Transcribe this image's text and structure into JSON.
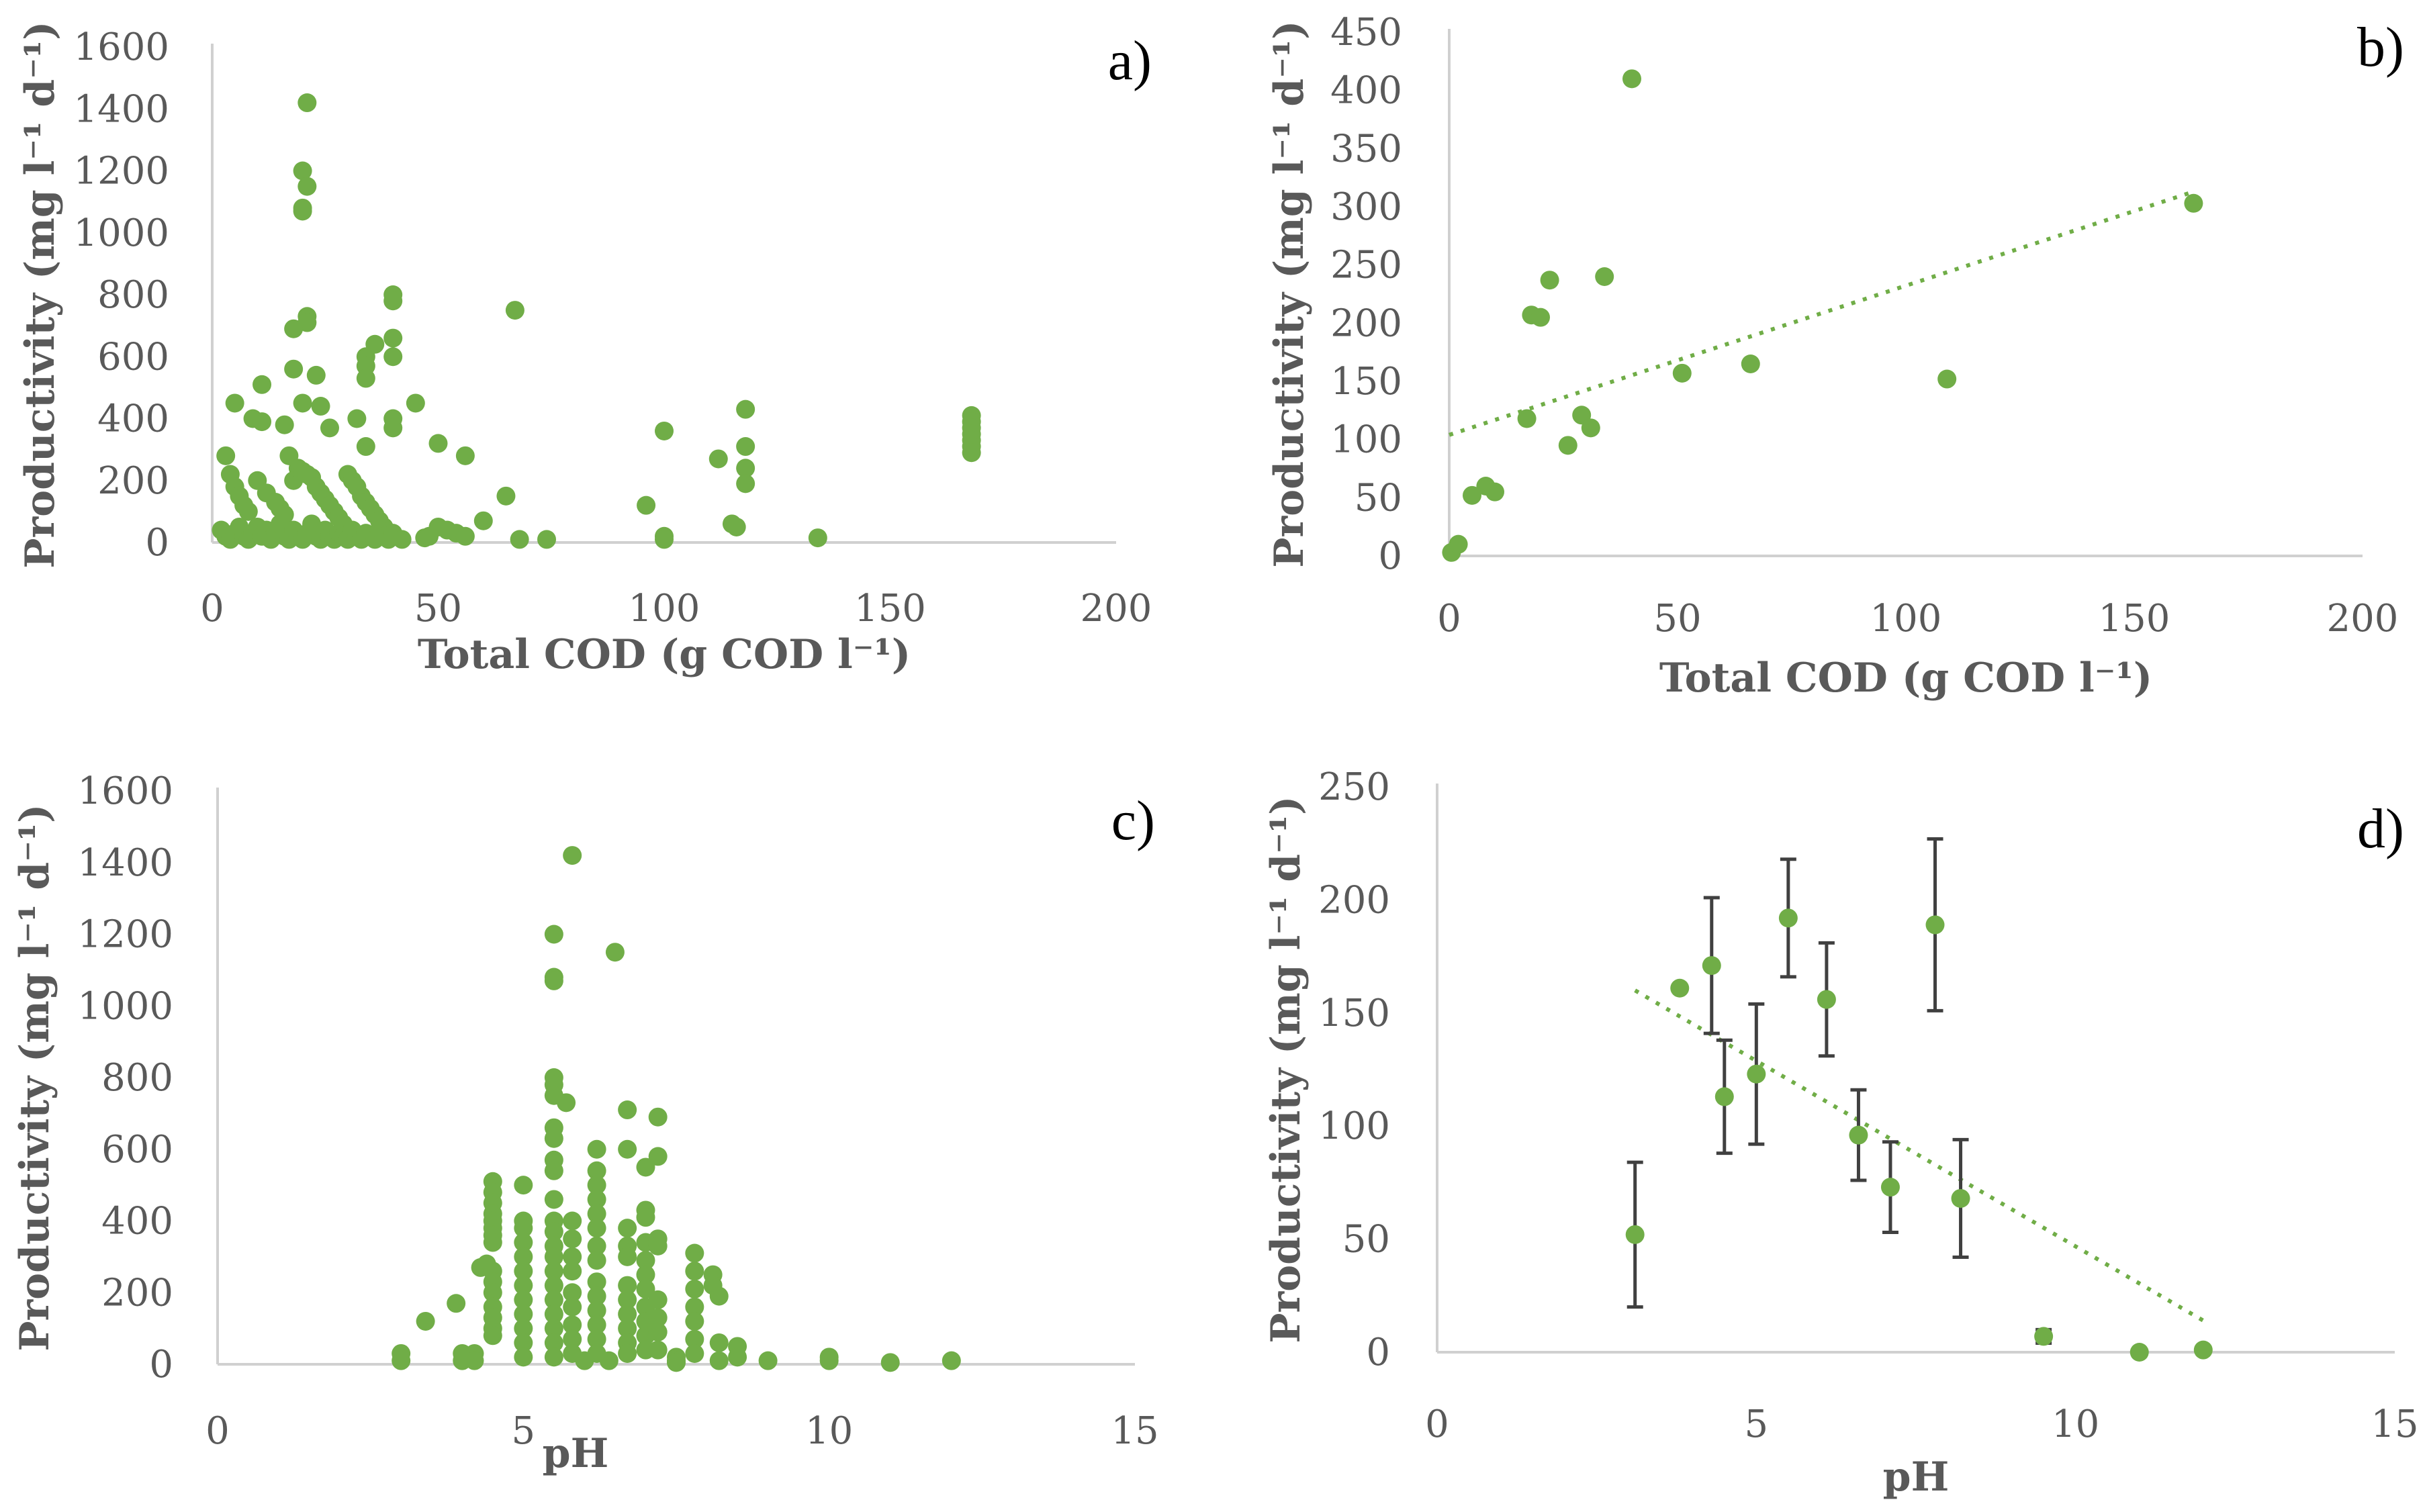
{
  "colors": {
    "marker": "#70ad47",
    "axis": "#d0d0d0",
    "text": "#595959",
    "errorbar": "#404040"
  },
  "chart_data": [
    {
      "id": "a",
      "panel_label": "a)",
      "type": "scatter",
      "xlabel": "Total COD (g COD l⁻¹)",
      "ylabel": "Productivity (mg l⁻¹ d⁻¹)",
      "xlim": [
        0,
        200
      ],
      "ylim": [
        0,
        1600
      ],
      "xticks": [
        0,
        50,
        100,
        150,
        200
      ],
      "yticks": [
        0,
        200,
        400,
        600,
        800,
        1000,
        1200,
        1400,
        1600
      ],
      "xtick_labels": [
        "0",
        "50",
        "100",
        "150",
        "200"
      ],
      "ytick_labels": [
        "0",
        "200",
        "400",
        "600",
        "800",
        "1000",
        "1200",
        "1400",
        "1600"
      ],
      "points": [
        [
          21,
          1420
        ],
        [
          20,
          1200
        ],
        [
          21,
          1150
        ],
        [
          20,
          1080
        ],
        [
          20,
          1070
        ],
        [
          21,
          730
        ],
        [
          21,
          710
        ],
        [
          18,
          690
        ],
        [
          40,
          800
        ],
        [
          40,
          780
        ],
        [
          67,
          750
        ],
        [
          40,
          660
        ],
        [
          36,
          640
        ],
        [
          34,
          600
        ],
        [
          34,
          570
        ],
        [
          40,
          600
        ],
        [
          18,
          560
        ],
        [
          23,
          540
        ],
        [
          11,
          510
        ],
        [
          34,
          530
        ],
        [
          5,
          450
        ],
        [
          9,
          400
        ],
        [
          11,
          390
        ],
        [
          16,
          380
        ],
        [
          20,
          450
        ],
        [
          24,
          440
        ],
        [
          26,
          370
        ],
        [
          32,
          400
        ],
        [
          40,
          400
        ],
        [
          40,
          370
        ],
        [
          45,
          450
        ],
        [
          34,
          310
        ],
        [
          50,
          320
        ],
        [
          56,
          280
        ],
        [
          65,
          150
        ],
        [
          3,
          280
        ],
        [
          4,
          220
        ],
        [
          5,
          180
        ],
        [
          6,
          150
        ],
        [
          7,
          120
        ],
        [
          8,
          100
        ],
        [
          10,
          200
        ],
        [
          12,
          160
        ],
        [
          14,
          130
        ],
        [
          15,
          110
        ],
        [
          16,
          90
        ],
        [
          17,
          280
        ],
        [
          18,
          200
        ],
        [
          19,
          240
        ],
        [
          20,
          230
        ],
        [
          21,
          220
        ],
        [
          22,
          210
        ],
        [
          23,
          180
        ],
        [
          24,
          160
        ],
        [
          25,
          140
        ],
        [
          26,
          120
        ],
        [
          27,
          100
        ],
        [
          28,
          80
        ],
        [
          29,
          60
        ],
        [
          30,
          220
        ],
        [
          31,
          200
        ],
        [
          32,
          180
        ],
        [
          33,
          150
        ],
        [
          34,
          130
        ],
        [
          35,
          110
        ],
        [
          36,
          90
        ],
        [
          37,
          70
        ],
        [
          38,
          50
        ],
        [
          2,
          40
        ],
        [
          3,
          20
        ],
        [
          4,
          10
        ],
        [
          5,
          30
        ],
        [
          6,
          50
        ],
        [
          7,
          20
        ],
        [
          8,
          10
        ],
        [
          9,
          30
        ],
        [
          10,
          50
        ],
        [
          11,
          20
        ],
        [
          12,
          40
        ],
        [
          13,
          10
        ],
        [
          14,
          30
        ],
        [
          15,
          60
        ],
        [
          16,
          20
        ],
        [
          17,
          10
        ],
        [
          18,
          40
        ],
        [
          19,
          20
        ],
        [
          20,
          10
        ],
        [
          21,
          30
        ],
        [
          22,
          60
        ],
        [
          23,
          20
        ],
        [
          24,
          10
        ],
        [
          25,
          40
        ],
        [
          26,
          20
        ],
        [
          27,
          10
        ],
        [
          28,
          30
        ],
        [
          29,
          20
        ],
        [
          30,
          10
        ],
        [
          31,
          40
        ],
        [
          32,
          20
        ],
        [
          33,
          10
        ],
        [
          34,
          30
        ],
        [
          35,
          20
        ],
        [
          36,
          10
        ],
        [
          37,
          40
        ],
        [
          38,
          20
        ],
        [
          39,
          10
        ],
        [
          40,
          30
        ],
        [
          42,
          10
        ],
        [
          47,
          15
        ],
        [
          48,
          20
        ],
        [
          50,
          50
        ],
        [
          52,
          40
        ],
        [
          54,
          30
        ],
        [
          56,
          20
        ],
        [
          60,
          70
        ],
        [
          68,
          10
        ],
        [
          74,
          10
        ],
        [
          96,
          120
        ],
        [
          100,
          360
        ],
        [
          100,
          20
        ],
        [
          100,
          10
        ],
        [
          112,
          270
        ],
        [
          115,
          60
        ],
        [
          116,
          50
        ],
        [
          118,
          430
        ],
        [
          118,
          310
        ],
        [
          118,
          240
        ],
        [
          118,
          190
        ],
        [
          134,
          15
        ],
        [
          168,
          410
        ],
        [
          168,
          390
        ],
        [
          168,
          370
        ],
        [
          168,
          350
        ],
        [
          168,
          330
        ],
        [
          168,
          310
        ],
        [
          168,
          290
        ]
      ]
    },
    {
      "id": "b",
      "panel_label": "b)",
      "type": "scatter",
      "xlabel": "Total COD (g COD l⁻¹)",
      "ylabel": "Productivity (mg l⁻¹ d⁻¹)",
      "xlim": [
        0,
        200
      ],
      "ylim": [
        0,
        450
      ],
      "xticks": [
        0,
        50,
        100,
        150,
        200
      ],
      "yticks": [
        0,
        50,
        100,
        150,
        200,
        250,
        300,
        350,
        400,
        450
      ],
      "xtick_labels": [
        "0",
        "50",
        "100",
        "150",
        "200"
      ],
      "ytick_labels": [
        "0",
        "50",
        "100",
        "150",
        "200",
        "250",
        "300",
        "350",
        "400",
        "450"
      ],
      "points": [
        [
          0.5,
          3
        ],
        [
          2,
          10
        ],
        [
          5,
          52
        ],
        [
          8,
          60
        ],
        [
          10,
          55
        ],
        [
          17,
          118
        ],
        [
          18,
          207
        ],
        [
          20,
          205
        ],
        [
          22,
          237
        ],
        [
          26,
          95
        ],
        [
          29,
          121
        ],
        [
          31,
          110
        ],
        [
          34,
          240
        ],
        [
          40,
          410
        ],
        [
          51,
          157
        ],
        [
          66,
          165
        ],
        [
          109,
          152
        ],
        [
          163,
          303
        ]
      ],
      "trendline": [
        [
          0,
          104
        ],
        [
          163,
          313
        ]
      ]
    },
    {
      "id": "c",
      "panel_label": "c)",
      "type": "scatter",
      "xlabel": "pH",
      "ylabel": "Productivity (mg l⁻¹ d⁻¹)",
      "xlim": [
        0,
        15
      ],
      "ylim": [
        0,
        1600
      ],
      "xticks": [
        0,
        5,
        10,
        15
      ],
      "yticks": [
        0,
        200,
        400,
        600,
        800,
        1000,
        1200,
        1400,
        1600
      ],
      "xtick_labels": [
        "0",
        "5",
        "10",
        "15"
      ],
      "ytick_labels": [
        "0",
        "200",
        "400",
        "600",
        "800",
        "1000",
        "1200",
        "1400",
        "1600"
      ],
      "points": [
        [
          5.8,
          1420
        ],
        [
          5.5,
          1200
        ],
        [
          6.5,
          1150
        ],
        [
          5.5,
          1080
        ],
        [
          5.5,
          1070
        ],
        [
          5.5,
          800
        ],
        [
          5.5,
          780
        ],
        [
          5.5,
          750
        ],
        [
          5.5,
          660
        ],
        [
          5.5,
          630
        ],
        [
          5.7,
          730
        ],
        [
          6.7,
          710
        ],
        [
          7.2,
          690
        ],
        [
          7.2,
          580
        ],
        [
          7.0,
          550
        ],
        [
          6.2,
          600
        ],
        [
          6.7,
          600
        ],
        [
          6.2,
          540
        ],
        [
          6.2,
          500
        ],
        [
          5.0,
          500
        ],
        [
          4.5,
          510
        ],
        [
          4.5,
          480
        ],
        [
          4.5,
          450
        ],
        [
          4.5,
          420
        ],
        [
          4.5,
          400
        ],
        [
          4.5,
          380
        ],
        [
          4.5,
          360
        ],
        [
          4.5,
          340
        ],
        [
          4.4,
          280
        ],
        [
          4.3,
          270
        ],
        [
          4.5,
          260
        ],
        [
          4.5,
          230
        ],
        [
          4.5,
          200
        ],
        [
          4.5,
          160
        ],
        [
          4.5,
          130
        ],
        [
          4.5,
          100
        ],
        [
          4.5,
          80
        ],
        [
          5.0,
          400
        ],
        [
          5.0,
          380
        ],
        [
          5.0,
          340
        ],
        [
          5.0,
          300
        ],
        [
          5.0,
          260
        ],
        [
          5.0,
          220
        ],
        [
          5.0,
          180
        ],
        [
          5.0,
          140
        ],
        [
          5.0,
          100
        ],
        [
          5.0,
          60
        ],
        [
          5.0,
          20
        ],
        [
          5.5,
          570
        ],
        [
          5.5,
          540
        ],
        [
          5.5,
          460
        ],
        [
          5.5,
          400
        ],
        [
          5.5,
          370
        ],
        [
          5.5,
          330
        ],
        [
          5.5,
          300
        ],
        [
          5.5,
          260
        ],
        [
          5.5,
          220
        ],
        [
          5.5,
          180
        ],
        [
          5.5,
          140
        ],
        [
          5.5,
          100
        ],
        [
          5.5,
          60
        ],
        [
          5.5,
          20
        ],
        [
          5.8,
          400
        ],
        [
          5.8,
          350
        ],
        [
          5.8,
          300
        ],
        [
          5.8,
          260
        ],
        [
          5.8,
          200
        ],
        [
          5.8,
          160
        ],
        [
          5.8,
          110
        ],
        [
          5.8,
          70
        ],
        [
          5.8,
          30
        ],
        [
          6.2,
          460
        ],
        [
          6.2,
          420
        ],
        [
          6.2,
          380
        ],
        [
          6.2,
          330
        ],
        [
          6.2,
          290
        ],
        [
          6.2,
          230
        ],
        [
          6.2,
          190
        ],
        [
          6.2,
          150
        ],
        [
          6.2,
          110
        ],
        [
          6.2,
          70
        ],
        [
          6.2,
          30
        ],
        [
          6.7,
          380
        ],
        [
          6.7,
          330
        ],
        [
          6.7,
          300
        ],
        [
          6.7,
          220
        ],
        [
          6.7,
          180
        ],
        [
          6.7,
          140
        ],
        [
          6.7,
          100
        ],
        [
          6.7,
          60
        ],
        [
          6.7,
          30
        ],
        [
          7.0,
          430
        ],
        [
          7.0,
          410
        ],
        [
          7.0,
          340
        ],
        [
          7.0,
          290
        ],
        [
          7.0,
          250
        ],
        [
          7.0,
          210
        ],
        [
          7.0,
          160
        ],
        [
          7.0,
          120
        ],
        [
          7.0,
          80
        ],
        [
          7.0,
          40
        ],
        [
          7.2,
          350
        ],
        [
          7.2,
          330
        ],
        [
          7.2,
          180
        ],
        [
          7.2,
          130
        ],
        [
          7.2,
          90
        ],
        [
          7.2,
          40
        ],
        [
          7.5,
          20
        ],
        [
          7.5,
          10
        ],
        [
          7.5,
          5
        ],
        [
          7.8,
          310
        ],
        [
          7.8,
          260
        ],
        [
          7.8,
          210
        ],
        [
          7.8,
          160
        ],
        [
          7.8,
          120
        ],
        [
          7.8,
          70
        ],
        [
          7.8,
          30
        ],
        [
          8.1,
          250
        ],
        [
          8.1,
          220
        ],
        [
          8.2,
          190
        ],
        [
          8.2,
          60
        ],
        [
          8.2,
          10
        ],
        [
          3.0,
          30
        ],
        [
          3.0,
          10
        ],
        [
          3.4,
          120
        ],
        [
          3.9,
          170
        ],
        [
          4.0,
          30
        ],
        [
          4.0,
          10
        ],
        [
          4.2,
          30
        ],
        [
          4.2,
          10
        ],
        [
          6.0,
          10
        ],
        [
          6.4,
          10
        ],
        [
          8.5,
          50
        ],
        [
          8.5,
          20
        ],
        [
          9.0,
          10
        ],
        [
          10.0,
          20
        ],
        [
          10.0,
          10
        ],
        [
          11.0,
          5
        ],
        [
          12.0,
          10
        ]
      ]
    },
    {
      "id": "d",
      "panel_label": "d)",
      "type": "scatter",
      "xlabel": "pH",
      "ylabel": "Productivity (mg l⁻¹ d⁻¹)",
      "xlim": [
        0,
        15
      ],
      "ylim": [
        0,
        250
      ],
      "xticks": [
        0,
        5,
        10,
        15
      ],
      "yticks": [
        0,
        50,
        100,
        150,
        200,
        250
      ],
      "xtick_labels": [
        "0",
        "5",
        "10",
        "15"
      ],
      "ytick_labels": [
        "0",
        "50",
        "100",
        "150",
        "200",
        "250"
      ],
      "points": [
        [
          3.1,
          52
        ],
        [
          3.8,
          161
        ],
        [
          4.3,
          171
        ],
        [
          4.5,
          113
        ],
        [
          5.0,
          123
        ],
        [
          5.5,
          192
        ],
        [
          6.1,
          156
        ],
        [
          6.6,
          96
        ],
        [
          7.1,
          73
        ],
        [
          7.8,
          189
        ],
        [
          8.2,
          68
        ],
        [
          9.5,
          7
        ],
        [
          11.0,
          0
        ],
        [
          12.0,
          1
        ]
      ],
      "error": [
        32,
        0,
        30,
        25,
        31,
        26,
        25,
        20,
        20,
        38,
        26,
        3,
        0,
        0
      ],
      "trendline": [
        [
          3.1,
          160
        ],
        [
          12.0,
          14
        ]
      ]
    }
  ]
}
